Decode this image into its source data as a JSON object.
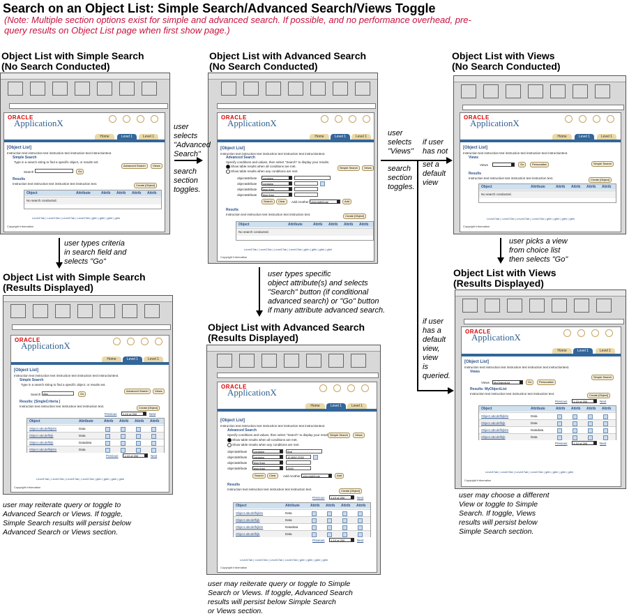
{
  "title": "Search on an Object List: Simple Search/Advanced Search/Views Toggle",
  "note": "(Note: Multiple section options exist for simple and advanced search. If possible, and no performance overhead, pre-query results on Object List page when first show page.)",
  "headings": {
    "simple_no_search": [
      "Object List with Simple Search",
      "(No Search Conducted)"
    ],
    "adv_no_search": [
      "Object List with Advanced Search",
      "(No Search Conducted)"
    ],
    "views_no_search": [
      "Object List with Views",
      "(No Search Conducted)"
    ],
    "simple_results": [
      "Object List with Simple Search",
      "(Results Displayed)"
    ],
    "adv_results": [
      "Object List with Advanced Search",
      "(Results Displayed)"
    ],
    "views_results": [
      "Object List with Views",
      "(Results Displayed)"
    ]
  },
  "annotations": {
    "to_adv": [
      "user",
      "selects",
      "\"Advanced",
      "Search\""
    ],
    "adv_toggle": [
      "search",
      "section",
      "toggles."
    ],
    "to_views": [
      "user",
      "selects",
      "\"Views\""
    ],
    "views_toggle": [
      "search",
      "section",
      "toggles."
    ],
    "no_default": [
      "if user",
      "has not",
      "set a",
      "default",
      "view"
    ],
    "has_default": [
      "if user",
      "has a",
      "default",
      "view,",
      "view",
      "is",
      "queried."
    ],
    "simple_go": [
      "user types criteria",
      "in search field and",
      "selects \"Go\""
    ],
    "adv_go": [
      "user types specific",
      "object attribute(s) and selects",
      "\"Search\" button (if conditional",
      "advanced search) or \"Go\" button",
      "if many attribute advanced search."
    ],
    "view_pick": [
      "user picks a view",
      "from choice list",
      "then selects \"Go\""
    ]
  },
  "captions": {
    "simple": [
      "user may reiterate query or toggle to",
      "Advanced Search or Views. If toggle,",
      "Simple Search results will persist below",
      "Advanced Search or Views section."
    ],
    "adv": [
      "user may reiterate query or toggle to Simple",
      "Search or Views. If toggle, Advanced Search",
      "results will persist below Simple Search",
      "or Views section."
    ],
    "views": [
      "user may choose a different",
      "View or toggle to Simple",
      "Search. If toggle, Views",
      "results will persist below",
      "Simple Search section."
    ]
  },
  "ui": {
    "oracle": "ORACLE",
    "app": "ApplicationX",
    "glob": "gblh",
    "tabs": [
      "Home",
      "Level 1",
      "Level 1"
    ],
    "object_list": "[Object List]",
    "instruction": "Instruction text instruction text instruction text instruction text instructiontext.",
    "simple_search": "Simple Search",
    "simple_hint": "Type in a search string to find a specific object, or results set.",
    "search_label": "Search",
    "search_value": "Abc",
    "go": "Go",
    "advanced_search_btn": "Advanced Search",
    "views_btn": "Views",
    "simple_search_btn": "Simple Search",
    "results": "Results",
    "results_simple": "Results: [SingleCriteria ]",
    "results_views": "Results: MyObjectList",
    "results_instr": "Instruction text instruction text instruction text instruction text.",
    "create": "Create [Object]",
    "cols": [
      "Object",
      "Attribute",
      "Attrib",
      "Attrib",
      "Attrib",
      "Attrib"
    ],
    "no_search": "No search conducted.",
    "objects": [
      "Object abcdefhijklm",
      "Object abcdefhijk",
      "Object abcdefhijk",
      "Object abcdefhijklm"
    ],
    "attrs": [
      "Data",
      "Data",
      "Datadata",
      "Data"
    ],
    "pager": [
      "Previous",
      "1-10 of 200",
      "Next"
    ],
    "footer": "Level1Tab | Level1Tab | Level1Tab | Level1Tab | glbh | glbh | glbh | glbh",
    "copyright": "Copyright Information",
    "adv_title": "Advanced Search",
    "adv_hint": "Specify conditions and values, then select \"Search\" to display your results.",
    "adv_all": "Show table results when all conditions are met.",
    "adv_any": "Show table results when any conditions are met.",
    "objattr": "objectattribute",
    "conds": [
      "contains",
      "contains",
      "less than",
      "less than"
    ],
    "adv_values": [
      "Bob",
      "10-MAY-2002",
      "",
      "2000"
    ],
    "search_btn": "Search",
    "clear_btn": "Clear",
    "add_another": "Add Another",
    "add": "Add",
    "views_title": "Views",
    "views_label": "Views",
    "views_selected": "MyObjectList",
    "personalize": "Personalize"
  }
}
